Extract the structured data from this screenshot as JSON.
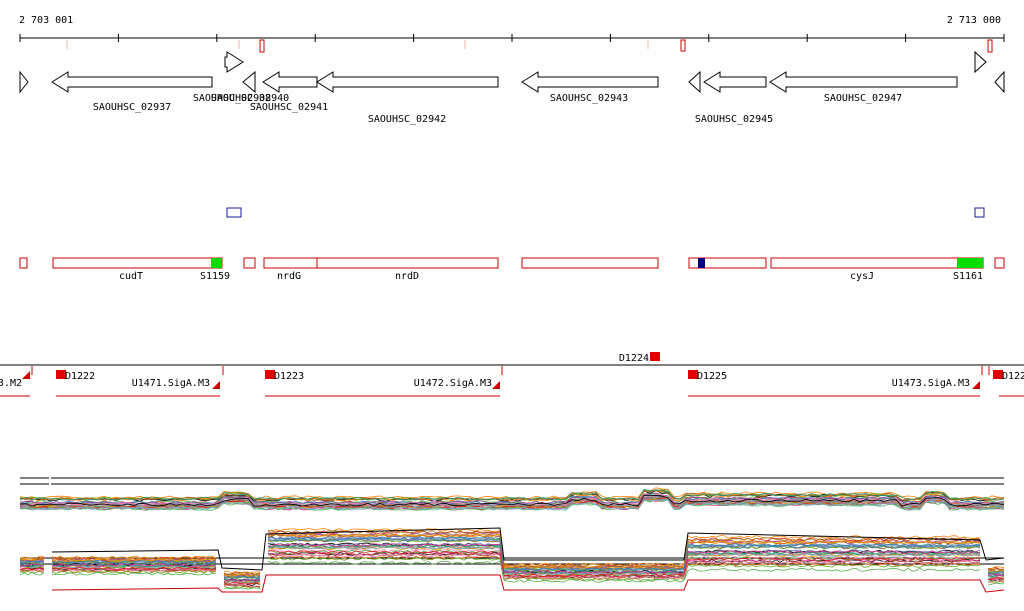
{
  "ruler": {
    "start_label": "2 703 001",
    "end_label": "2 713 000",
    "start_coord": 2703001,
    "end_coord": 2713000
  },
  "genes": [
    {
      "label": "",
      "strand": "+"
    },
    {
      "label": "SAOUHSC_02937",
      "strand": "-"
    },
    {
      "label": "SAOUHSC_02938",
      "strand": "+"
    },
    {
      "label": "SAOUHSC_02940",
      "strand": "-"
    },
    {
      "label": "SAOUHSC_02941",
      "strand": "-"
    },
    {
      "label": "SAOUHSC_02942",
      "strand": "-"
    },
    {
      "label": "SAOUHSC_02943",
      "strand": "-"
    },
    {
      "label": "",
      "strand": "-"
    },
    {
      "label": "SAOUHSC_02945",
      "strand": "-"
    },
    {
      "label": "SAOUHSC_02947",
      "strand": "-"
    },
    {
      "label": "",
      "strand": "+"
    },
    {
      "label": "",
      "strand": "-"
    }
  ],
  "annotations": {
    "labels": [
      "cudT",
      "S1159",
      "nrdG",
      "nrdD",
      "cysJ",
      "S1161"
    ],
    "colors": {
      "outline": "#cc0000",
      "signal": "#00dd00",
      "marker": "#000080"
    }
  },
  "transcription": {
    "units": [
      "U1471.SigA.M3",
      "U1472.SigA.M3",
      "U1473.SigA.M3"
    ],
    "left_cut_label": "3.M2",
    "promoters": [
      "D1222",
      "D1223",
      "D1224",
      "D1225",
      "D122"
    ]
  },
  "expression": {
    "tracks": 2,
    "colors": [
      "#e41a1c",
      "#377eb8",
      "#4daf4a",
      "#984ea3",
      "#ff7f00",
      "#a65628",
      "#f781bf",
      "#999999",
      "#66c2a5",
      "#8da0cb",
      "#000000",
      "#1b9e77",
      "#d95f02",
      "#7570b3",
      "#e7298a",
      "#66a61e",
      "#e6ab02",
      "#a6761d"
    ]
  }
}
